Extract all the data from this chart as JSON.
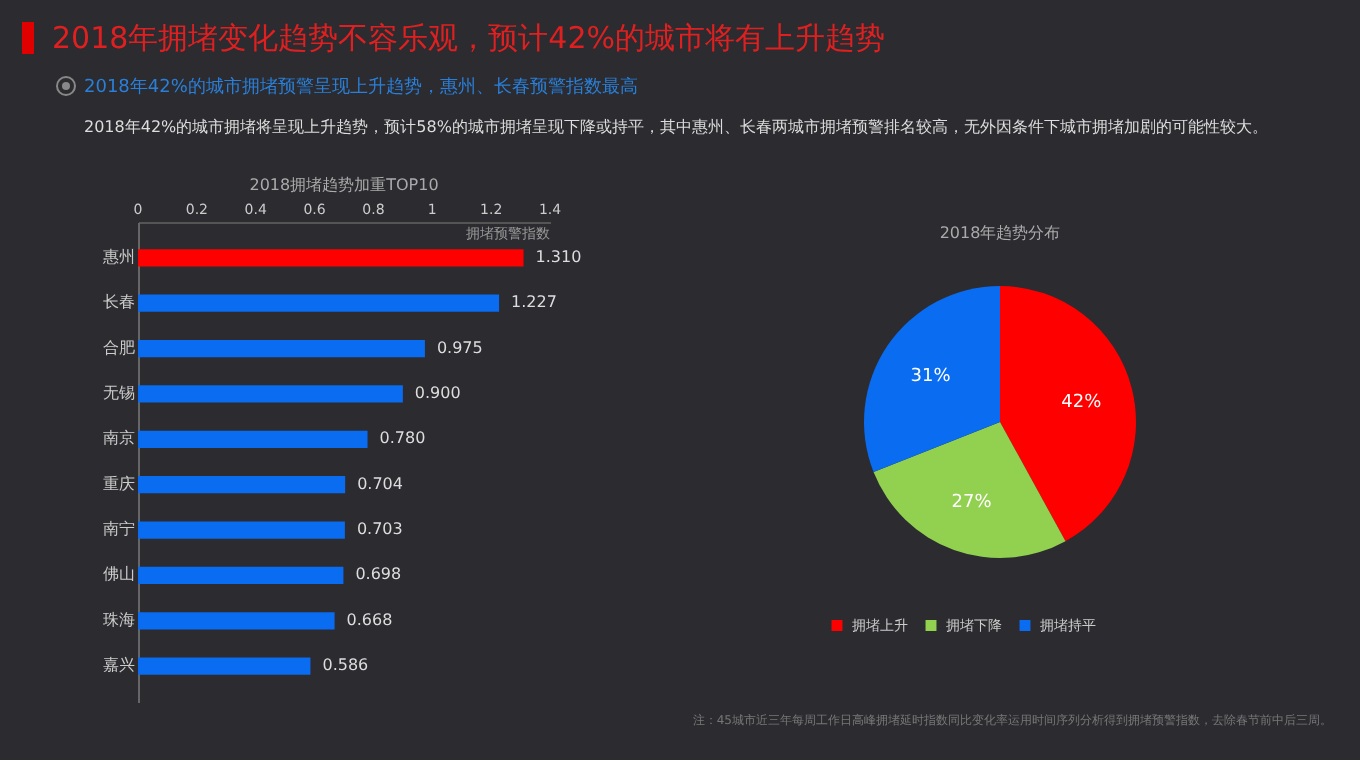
{
  "chart_data": [
    {
      "type": "bar",
      "orientation": "horizontal",
      "title": "2018拥堵趋势加重TOP10",
      "xlabel": "拥堵预警指数",
      "annotations": [
        "2018年拥堵变化趋势不容乐观，预计42%的城市将有上升趋势",
        "2018年42%的城市拥堵预警呈现上升趋势，惠州、长春预警指数最高",
        "2018年42%的城市拥堵将呈现上升趋势，预计58%的城市拥堵呈现下降或持平，其中惠州、长春两城市拥堵预警排名较高，无外因条件下城市拥堵加剧的可能性较大。"
      ],
      "categories": [
        "惠州",
        "长春",
        "合肥",
        "无锡",
        "南京",
        "重庆",
        "南宁",
        "佛山",
        "珠海",
        "嘉兴"
      ],
      "values": [
        1.31,
        1.227,
        0.975,
        0.9,
        0.78,
        0.704,
        0.703,
        0.698,
        0.668,
        0.586
      ],
      "value_labels": [
        "1.310",
        "1.227",
        "0.975",
        "0.900",
        "0.780",
        "0.704",
        "0.703",
        "0.698",
        "0.668",
        "0.586"
      ],
      "colors": [
        "#ff0000",
        "#0a6cf0",
        "#0a6cf0",
        "#0a6cf0",
        "#0a6cf0",
        "#0a6cf0",
        "#0a6cf0",
        "#0a6cf0",
        "#0a6cf0",
        "#0a6cf0"
      ],
      "xlim": [
        0,
        1.4
      ],
      "xticks": [
        0,
        0.2,
        0.4,
        0.6,
        0.8,
        1,
        1.2,
        1.4
      ],
      "grid": false
    },
    {
      "type": "pie",
      "title": "2018年趋势分布",
      "annotations": [
        "注：45城市近三年每周工作日高峰拥堵延时指数同比变化率运用时间序列分析得到拥堵预警指数，去除春节前中后三周。"
      ],
      "categories": [
        "拥堵上升",
        "拥堵下降",
        "拥堵持平"
      ],
      "values": [
        42,
        27,
        31
      ],
      "value_labels": [
        "42%",
        "27%",
        "31%"
      ],
      "colors": [
        "#ff0000",
        "#92d050",
        "#0a6cf0"
      ],
      "legend": "bottom"
    }
  ]
}
